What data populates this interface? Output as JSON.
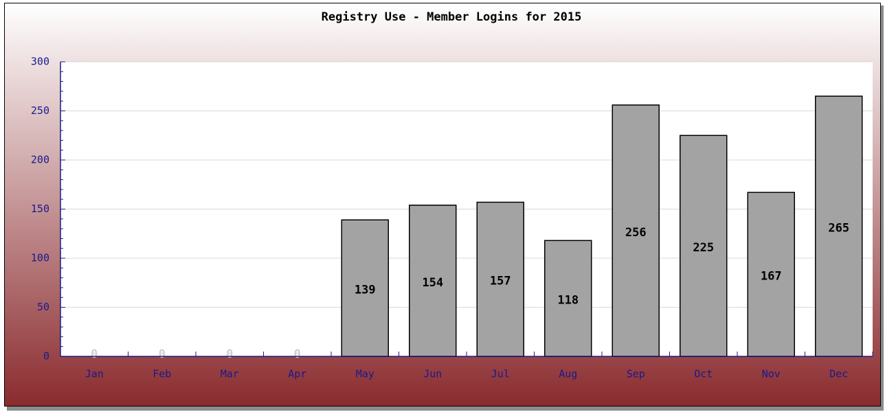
{
  "chart_data": {
    "type": "bar",
    "title": "Registry Use - Member Logins for 2015",
    "categories": [
      "Jan",
      "Feb",
      "Mar",
      "Apr",
      "May",
      "Jun",
      "Jul",
      "Aug",
      "Sep",
      "Oct",
      "Nov",
      "Dec"
    ],
    "values": [
      0,
      0,
      0,
      0,
      139,
      154,
      157,
      118,
      256,
      225,
      167,
      265
    ],
    "color": "#a3a3a3",
    "ylim": [
      0,
      300
    ],
    "yticks": [
      0,
      50,
      100,
      150,
      200,
      250,
      300
    ],
    "grid": true
  }
}
